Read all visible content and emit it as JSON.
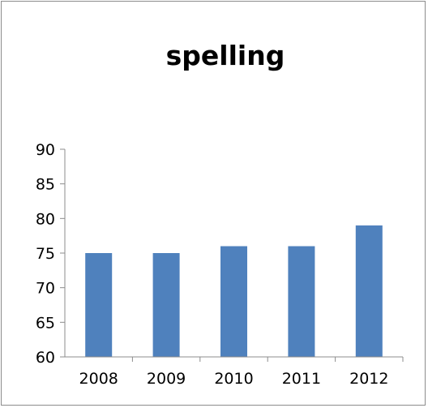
{
  "colors": {
    "bar": "#4f81bd",
    "axis": "#8c8c8c",
    "border": "#8c8c8c"
  },
  "chart_data": {
    "type": "bar",
    "title": "spelling",
    "xlabel": "",
    "ylabel": "",
    "categories": [
      "2008",
      "2009",
      "2010",
      "2011",
      "2012"
    ],
    "values": [
      75,
      75,
      76,
      76,
      79
    ],
    "ylim": [
      60,
      90
    ],
    "yticks": [
      60,
      65,
      70,
      75,
      80,
      85,
      90
    ],
    "grid": false,
    "legend": "none"
  }
}
